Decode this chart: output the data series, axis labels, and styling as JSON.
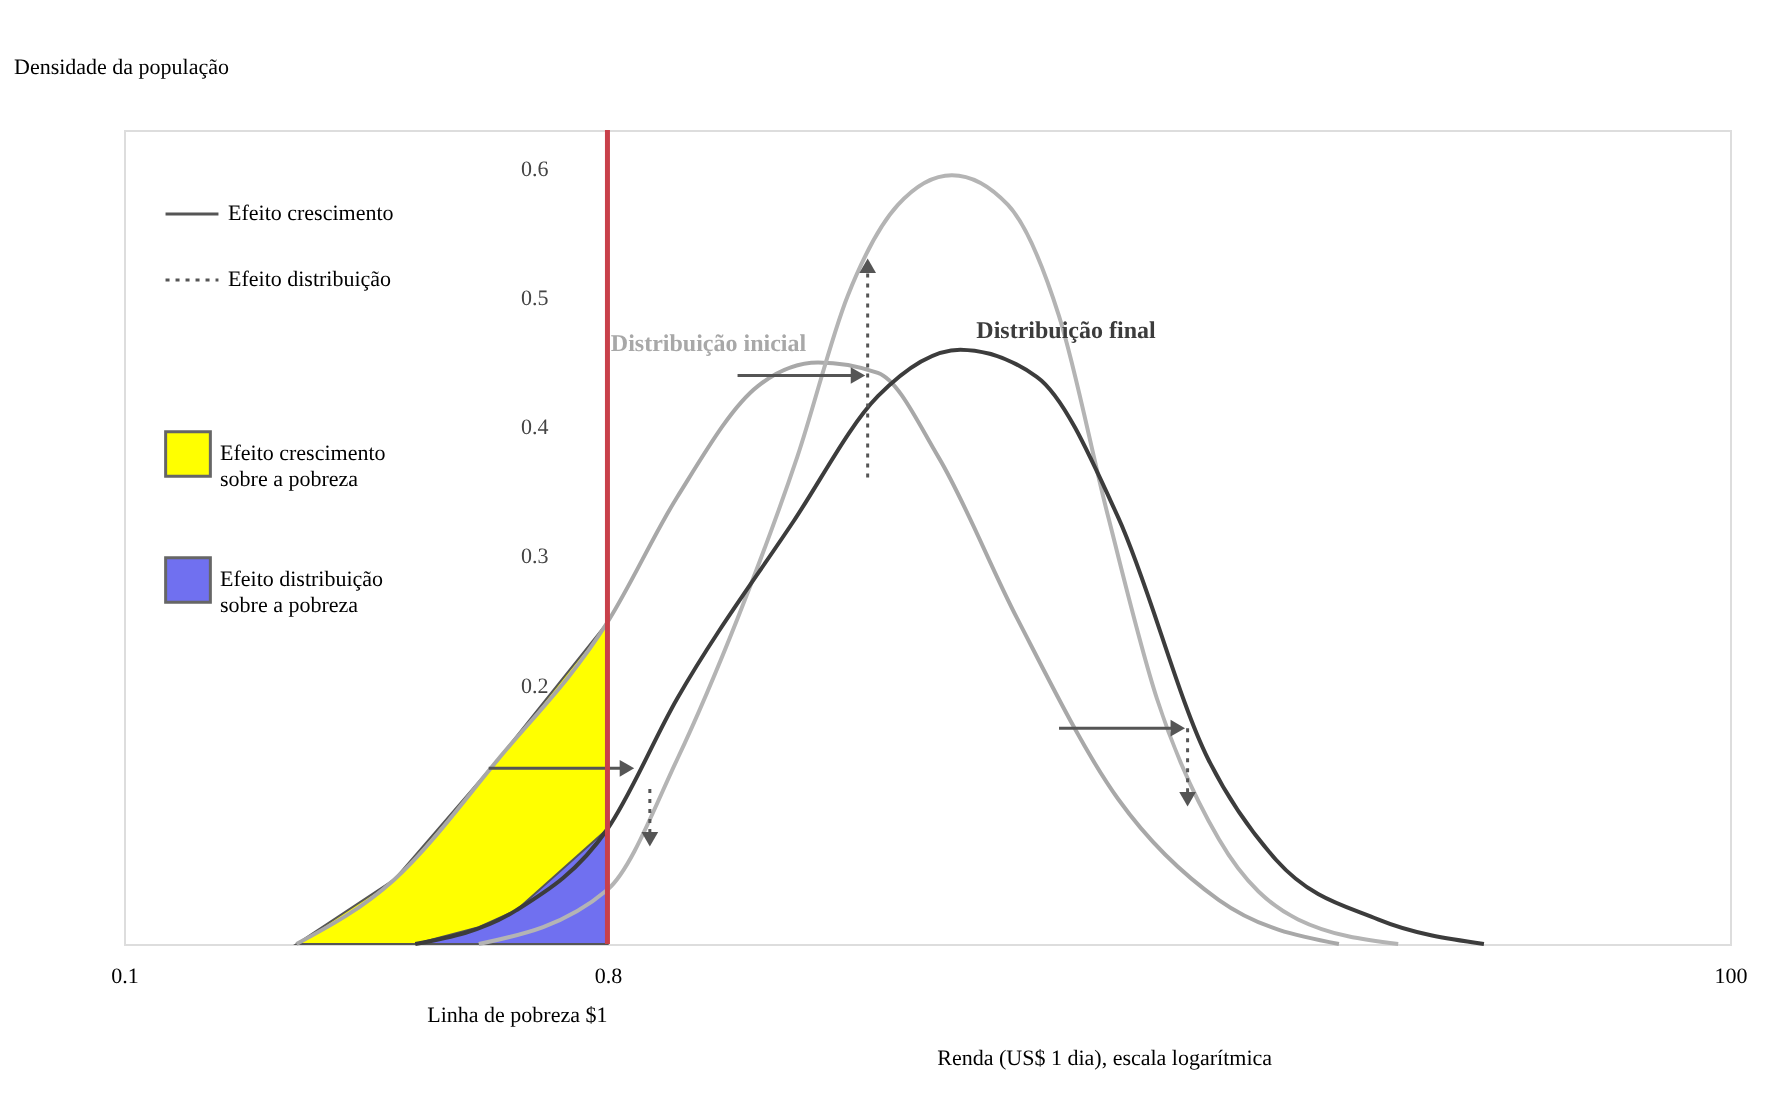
{
  "chart_data": {
    "type": "line",
    "xlabel": "Renda (US$ 1 dia), escala logarítmica",
    "ylabel": "Densidade da população",
    "log": "x",
    "xlim": [
      0.1,
      100
    ],
    "xticks": [
      0.1,
      0.8,
      100
    ],
    "ylim": [
      0,
      0.63
    ],
    "yticks": [
      0.2,
      0.3,
      0.4,
      0.5,
      0.6
    ],
    "grid": false,
    "legend": "top left",
    "ref_lines": [
      {
        "axis": "x",
        "value": 0.8,
        "label": "Linha de pobreza $1",
        "color": "#c8404a"
      }
    ],
    "series": [
      {
        "name": "Efeito crescimento sobre a pobreza",
        "type": "area",
        "color": "#ffff00",
        "x": [
          0.21,
          0.32,
          0.5,
          0.8
        ],
        "values": [
          0,
          0.05,
          0.143,
          0.249
        ]
      },
      {
        "name": "Efeito distribuição sobre a pobreza",
        "type": "area",
        "color": "#7070f0",
        "x": [
          0.35,
          0.46,
          0.54,
          0.8
        ],
        "values": [
          0,
          0.013,
          0.026,
          0.089
        ]
      },
      {
        "name": "Distribuição inicial",
        "color": "#a8a8a8",
        "x": [
          0.21,
          0.32,
          0.5,
          0.8,
          1.08,
          1.53,
          1.98,
          2.56,
          3.32,
          4.66,
          7.2,
          11.1,
          18.6
        ],
        "values": [
          0,
          0.05,
          0.143,
          0.249,
          0.346,
          0.432,
          0.45,
          0.442,
          0.377,
          0.252,
          0.112,
          0.034,
          0
        ]
      },
      {
        "color": "#b4b4b4",
        "x": [
          0.46,
          0.8,
          1.08,
          1.4,
          1.81,
          2.25,
          2.79,
          3.52,
          4.48,
          5.58,
          6.9,
          8.5,
          11.1,
          15.6,
          24.0
        ],
        "values": [
          0,
          0.042,
          0.143,
          0.252,
          0.377,
          0.502,
          0.572,
          0.595,
          0.572,
          0.486,
          0.33,
          0.19,
          0.081,
          0.019,
          0
        ]
      },
      {
        "name": "Distribuição final",
        "color": "#3c3c3c",
        "x": [
          0.35,
          0.54,
          0.8,
          1.08,
          1.78,
          2.56,
          3.65,
          5.07,
          7.2,
          10.6,
          14.2,
          22.0,
          34.7
        ],
        "values": [
          0,
          0.026,
          0.089,
          0.19,
          0.327,
          0.424,
          0.46,
          0.439,
          0.33,
          0.143,
          0.065,
          0.019,
          0
        ]
      },
      {
        "name": "Efeito crescimento",
        "color": "#555555",
        "marker": "triangle",
        "x": [
          1.4,
          2.35,
          null,
          0.48,
          0.87,
          null,
          5.58,
          9.3
        ],
        "values": [
          0.44,
          0.44,
          null,
          0.136,
          0.136,
          null,
          0.167,
          0.167
        ]
      },
      {
        "name": "Efeito distribuição",
        "color": "#555555",
        "marker": "triangle",
        "line_style": "dotted",
        "x": [
          2.45,
          2.45,
          null,
          0.96,
          0.96,
          null,
          9.7,
          9.7
        ],
        "values": [
          0.361,
          0.525,
          null,
          0.12,
          0.081,
          null,
          0.167,
          0.112
        ]
      }
    ]
  }
}
